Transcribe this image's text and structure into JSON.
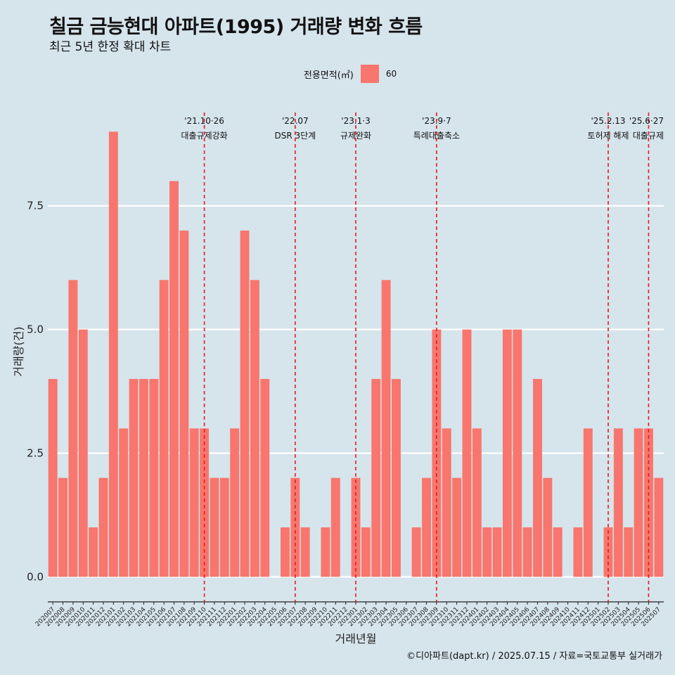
{
  "header": {
    "title": "칠금 금능현대 아파트(1995) 거래량 변화 흐름",
    "subtitle": "최근 5년 한정 확대 차트"
  },
  "legend": {
    "title": "전용면적(㎡)",
    "label": "60",
    "color": "#f8766d"
  },
  "caption": "©디아파트(dapt.kr) / 2025.07.15 / 자료=국토교통부 실거래가",
  "colors": {
    "background": "#d6e4ec",
    "bar": "#f8766d",
    "gridline": "#ffffff",
    "annotation_line": "#e41a1c"
  },
  "chart_data": {
    "type": "bar",
    "xlabel": "거래년월",
    "ylabel": "거래량(건)",
    "ylim": [
      -0.35,
      9.6
    ],
    "yticks": [
      0,
      2.5,
      5,
      7.5
    ],
    "ytick_labels": [
      "0.0",
      "2.5",
      "5.0",
      "7.5"
    ],
    "categories": [
      "202007",
      "202008",
      "202009",
      "202010",
      "202011",
      "202012",
      "202101",
      "202102",
      "202103",
      "202104",
      "202105",
      "202106",
      "202107",
      "202108",
      "202109",
      "202110",
      "202111",
      "202112",
      "202201",
      "202202",
      "202203",
      "202204",
      "202205",
      "202206",
      "202207",
      "202208",
      "202209",
      "202210",
      "202211",
      "202212",
      "202301",
      "202302",
      "202303",
      "202304",
      "202305",
      "202306",
      "202307",
      "202308",
      "202309",
      "202310",
      "202311",
      "202312",
      "202401",
      "202402",
      "202403",
      "202404",
      "202405",
      "202406",
      "202407",
      "202408",
      "202409",
      "202410",
      "202411",
      "202412",
      "202501",
      "202502",
      "202503",
      "202504",
      "202505",
      "202506",
      "202507"
    ],
    "values": [
      4,
      2,
      6,
      5,
      1,
      2,
      9,
      3,
      4,
      4,
      4,
      6,
      8,
      7,
      3,
      3,
      2,
      2,
      3,
      7,
      6,
      4,
      0,
      1,
      2,
      1,
      0,
      1,
      2,
      0,
      2,
      1,
      4,
      6,
      4,
      0,
      1,
      2,
      5,
      3,
      2,
      5,
      3,
      1,
      1,
      5,
      5,
      1,
      4,
      2,
      1,
      0,
      1,
      3,
      0,
      1,
      3,
      1,
      3,
      3,
      2
    ],
    "series": [
      {
        "name": "60",
        "values": [
          4,
          2,
          6,
          5,
          1,
          2,
          9,
          3,
          4,
          4,
          4,
          6,
          8,
          7,
          3,
          3,
          2,
          2,
          3,
          7,
          6,
          4,
          0,
          1,
          2,
          1,
          0,
          1,
          2,
          0,
          2,
          1,
          4,
          6,
          4,
          0,
          1,
          2,
          5,
          3,
          2,
          5,
          3,
          1,
          1,
          5,
          5,
          1,
          4,
          2,
          1,
          0,
          1,
          3,
          0,
          1,
          3,
          1,
          3,
          3,
          2
        ]
      }
    ],
    "legend_position": "top",
    "grid": true,
    "annotations": [
      {
        "category": "202110",
        "date": "'21.10·26",
        "label": "대출규제강화"
      },
      {
        "category": "202207",
        "date": "'22.07",
        "label": "DSR 3단계"
      },
      {
        "category": "202301",
        "date": "'23.1·3",
        "label": "규제완화"
      },
      {
        "category": "202309",
        "date": "'23.9·7",
        "label": "특례대출축소"
      },
      {
        "category": "202502",
        "date": "'25.2.13",
        "label": "토허제 해제"
      },
      {
        "category": "202506",
        "date": "'25.6·27",
        "label": "대출규제"
      }
    ]
  }
}
